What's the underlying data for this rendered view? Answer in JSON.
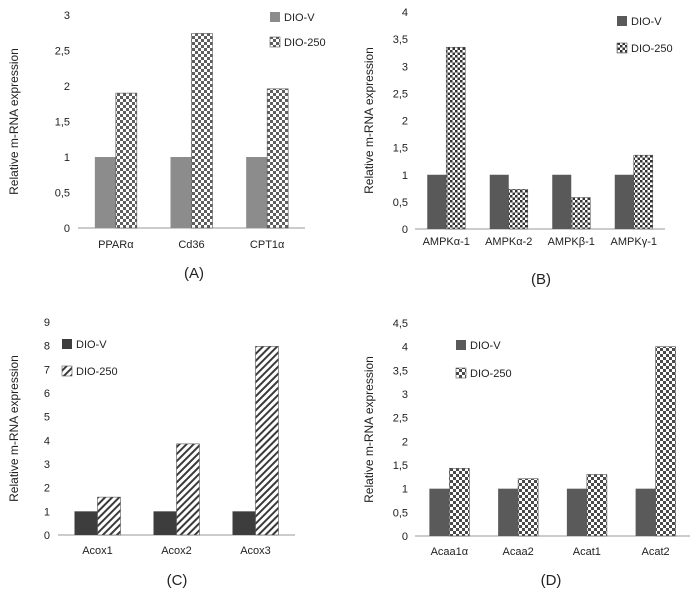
{
  "chart_data": [
    {
      "id": "A",
      "type": "bar",
      "panel_label": "(A)",
      "ylabel": "Relative m-RNA expression",
      "ylim": [
        0,
        3
      ],
      "yticks": [
        "0",
        "0,5",
        "1",
        "1,5",
        "2",
        "2,5",
        "3"
      ],
      "yticks_values": [
        0,
        0.5,
        1,
        1.5,
        2,
        2.5,
        3
      ],
      "categories": [
        "PPARα",
        "Cd36",
        "CPT1α"
      ],
      "series": [
        {
          "name": "DIO-V",
          "values": [
            1.0,
            1.0,
            1.0
          ],
          "color": "#8c8c8c",
          "pattern": "solid"
        },
        {
          "name": "DIO-250",
          "values": [
            1.9,
            2.74,
            1.96
          ],
          "color": "#606060",
          "pattern": "check"
        }
      ],
      "legend_position": "top-right"
    },
    {
      "id": "B",
      "type": "bar",
      "panel_label": "(B)",
      "ylabel": "Relative m-RNA expression",
      "ylim": [
        0,
        4
      ],
      "yticks": [
        "0",
        "0,5",
        "1",
        "1,5",
        "2",
        "2,5",
        "3",
        "3,5",
        "4"
      ],
      "yticks_values": [
        0,
        0.5,
        1,
        1.5,
        2,
        2.5,
        3,
        3.5,
        4
      ],
      "categories": [
        "AMPKα-1",
        "AMPKα-2",
        "AMPKβ-1",
        "AMPKγ-1"
      ],
      "series": [
        {
          "name": "DIO-V",
          "values": [
            1.0,
            1.0,
            1.0,
            1.0
          ],
          "color": "#595959",
          "pattern": "solid"
        },
        {
          "name": "DIO-250",
          "values": [
            3.35,
            0.73,
            0.58,
            1.36
          ],
          "color": "#3a3a3a",
          "pattern": "check"
        }
      ],
      "legend_position": "top-right"
    },
    {
      "id": "C",
      "type": "bar",
      "panel_label": "(C)",
      "ylabel": "Relative m-RNA expression",
      "ylim": [
        0,
        9
      ],
      "yticks": [
        "0",
        "1",
        "2",
        "3",
        "4",
        "5",
        "6",
        "7",
        "8",
        "9"
      ],
      "yticks_values": [
        0,
        1,
        2,
        3,
        4,
        5,
        6,
        7,
        8,
        9
      ],
      "categories": [
        "Acox1",
        "Acox2",
        "Acox3"
      ],
      "series": [
        {
          "name": "DIO-V",
          "values": [
            1.0,
            1.0,
            1.0
          ],
          "color": "#3d3d3d",
          "pattern": "solid"
        },
        {
          "name": "DIO-250",
          "values": [
            1.6,
            3.85,
            7.97
          ],
          "color": "#3d3d3d",
          "pattern": "diagonal"
        }
      ],
      "legend_position": "top-left"
    },
    {
      "id": "D",
      "type": "bar",
      "panel_label": "(D)",
      "ylabel": "Relative m-RNA expression",
      "ylim": [
        0,
        4.5
      ],
      "yticks": [
        "0",
        "0,5",
        "1",
        "1,5",
        "2",
        "2,5",
        "3",
        "3,5",
        "4",
        "4,5"
      ],
      "yticks_values": [
        0,
        0.5,
        1,
        1.5,
        2,
        2.5,
        3,
        3.5,
        4,
        4.5
      ],
      "categories": [
        "Acaa1α",
        "Acaa2",
        "Acat1",
        "Acat2"
      ],
      "series": [
        {
          "name": "DIO-V",
          "values": [
            1.0,
            1.0,
            1.0,
            1.0
          ],
          "color": "#5a5a5a",
          "pattern": "solid"
        },
        {
          "name": "DIO-250",
          "values": [
            1.43,
            1.21,
            1.3,
            4.0
          ],
          "color": "#3a3a3a",
          "pattern": "check"
        }
      ],
      "legend_position": "top-right"
    }
  ]
}
